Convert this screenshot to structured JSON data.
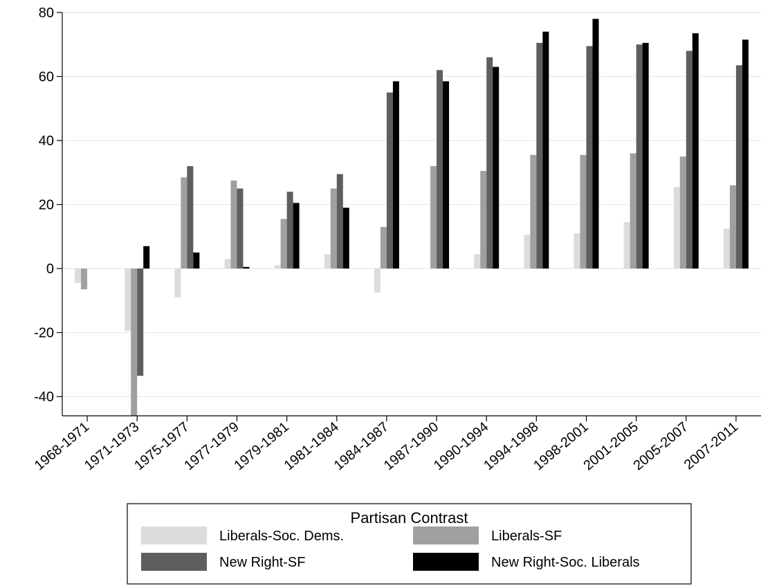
{
  "chart_data": {
    "type": "bar",
    "categories": [
      "1968-1971",
      "1971-1973",
      "1975-1977",
      "1977-1979",
      "1979-1981",
      "1981-1984",
      "1984-1987",
      "1987-1990",
      "1990-1994",
      "1994-1998",
      "1998-2001",
      "2001-2005",
      "2005-2007",
      "2007-2011"
    ],
    "series": [
      {
        "name": "Liberals-Soc. Dems.",
        "color": "#dcdcdc",
        "values": [
          -4.5,
          -19.5,
          -9,
          3,
          1,
          4.5,
          -7.5,
          0,
          4.5,
          10.5,
          11,
          14.5,
          25.5,
          12.5
        ]
      },
      {
        "name": "Liberals-SF",
        "color": "#a0a0a0",
        "values": [
          -6.5,
          -46,
          28.5,
          27.5,
          15.5,
          25,
          13,
          32,
          30.5,
          35.5,
          35.5,
          36,
          35,
          26
        ]
      },
      {
        "name": "New Right-SF",
        "color": "#5e5e5e",
        "values": [
          0,
          -33.5,
          32,
          25,
          24,
          29.5,
          55,
          62,
          66,
          70.5,
          69.5,
          70,
          68,
          63.5
        ]
      },
      {
        "name": "New Right-Soc. Liberals",
        "color": "#000000",
        "values": [
          0,
          7,
          5,
          0.5,
          20.5,
          19,
          58.5,
          58.5,
          63,
          74,
          78,
          70.5,
          73.5,
          71.5
        ]
      }
    ],
    "y_ticks": [
      "80",
      "60",
      "40",
      "20",
      "0",
      "-20",
      "-40"
    ],
    "ylim": [
      -46,
      80
    ],
    "grid": "horizontal",
    "legend": {
      "title": "Partisan Contrast",
      "placement": "bottom"
    }
  }
}
